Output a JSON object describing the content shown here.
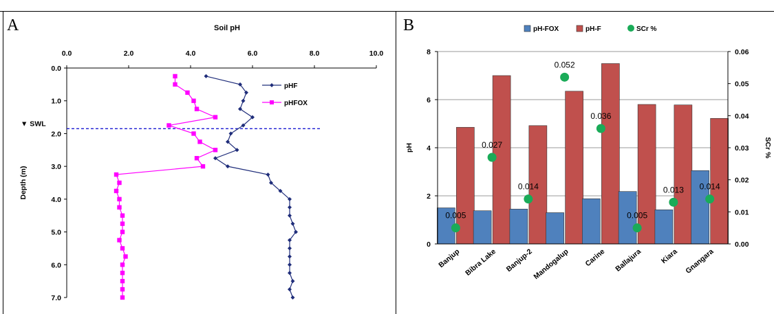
{
  "panels": {
    "a": "A",
    "b": "B"
  },
  "chart_data": [
    {
      "type": "line",
      "title": "Soil pH",
      "ylabel": "Depth (m)",
      "xlim": [
        0,
        10
      ],
      "ylim": [
        7,
        0
      ],
      "x_ticks": [
        "0.0",
        "2.0",
        "4.0",
        "6.0",
        "8.0",
        "10.0"
      ],
      "y_ticks": [
        "0.0",
        "1.0",
        "2.0",
        "3.0",
        "4.0",
        "5.0",
        "6.0",
        "7.0"
      ],
      "legend_position": "top-right",
      "series": [
        {
          "name": "pHF",
          "color": "#1f2d7a",
          "marker": "diamond",
          "points": [
            [
              4.5,
              0.25
            ],
            [
              5.6,
              0.5
            ],
            [
              5.8,
              0.75
            ],
            [
              5.7,
              1.0
            ],
            [
              5.6,
              1.25
            ],
            [
              6.0,
              1.5
            ],
            [
              5.7,
              1.75
            ],
            [
              5.3,
              2.0
            ],
            [
              5.2,
              2.25
            ],
            [
              5.5,
              2.5
            ],
            [
              4.8,
              2.75
            ],
            [
              5.2,
              3.0
            ],
            [
              6.5,
              3.25
            ],
            [
              6.6,
              3.5
            ],
            [
              6.9,
              3.75
            ],
            [
              7.2,
              4.0
            ],
            [
              7.2,
              4.25
            ],
            [
              7.2,
              4.5
            ],
            [
              7.3,
              4.75
            ],
            [
              7.4,
              5.0
            ],
            [
              7.2,
              5.25
            ],
            [
              7.2,
              5.5
            ],
            [
              7.2,
              5.75
            ],
            [
              7.2,
              6.0
            ],
            [
              7.2,
              6.25
            ],
            [
              7.3,
              6.5
            ],
            [
              7.2,
              6.75
            ],
            [
              7.3,
              7.0
            ]
          ]
        },
        {
          "name": "pHFOX",
          "color": "#ff00ff",
          "marker": "square",
          "points": [
            [
              3.5,
              0.25
            ],
            [
              3.5,
              0.5
            ],
            [
              3.9,
              0.75
            ],
            [
              4.1,
              1.0
            ],
            [
              4.2,
              1.25
            ],
            [
              4.8,
              1.5
            ],
            [
              3.3,
              1.75
            ],
            [
              4.1,
              2.0
            ],
            [
              4.3,
              2.25
            ],
            [
              4.8,
              2.5
            ],
            [
              4.2,
              2.75
            ],
            [
              4.4,
              3.0
            ],
            [
              1.6,
              3.25
            ],
            [
              1.7,
              3.5
            ],
            [
              1.6,
              3.75
            ],
            [
              1.7,
              4.0
            ],
            [
              1.7,
              4.25
            ],
            [
              1.8,
              4.5
            ],
            [
              1.8,
              4.75
            ],
            [
              1.8,
              5.0
            ],
            [
              1.7,
              5.25
            ],
            [
              1.8,
              5.5
            ],
            [
              1.9,
              5.75
            ],
            [
              1.8,
              6.0
            ],
            [
              1.8,
              6.25
            ],
            [
              1.8,
              6.5
            ],
            [
              1.8,
              6.75
            ],
            [
              1.8,
              7.0
            ]
          ]
        }
      ],
      "annotations": [
        {
          "text": "▼ SWL",
          "y": 1.85,
          "style": "dashed-line",
          "color": "#0000cc"
        }
      ]
    },
    {
      "type": "bar",
      "categories": [
        "Banjup",
        "Bibra Lake",
        "Banjup-2",
        "Mandogalup",
        "Carine",
        "Ballajura",
        "Kiara",
        "Gnangara"
      ],
      "ylabel": "pH",
      "y2label": "SCr %",
      "ylim": [
        0,
        8
      ],
      "y2lim": [
        0,
        0.06
      ],
      "y_ticks": [
        "0",
        "2",
        "4",
        "6",
        "8"
      ],
      "y2_ticks": [
        "0.00",
        "0.01",
        "0.02",
        "0.03",
        "0.04",
        "0.05",
        "0.06"
      ],
      "grid": true,
      "legend_position": "top",
      "series": [
        {
          "name": "pH-FOX",
          "color": "#4f81bd",
          "type": "bar",
          "values": [
            1.5,
            1.38,
            1.45,
            1.3,
            1.88,
            2.18,
            1.42,
            3.05
          ]
        },
        {
          "name": "pH-F",
          "color": "#c0504d",
          "type": "bar",
          "values": [
            4.85,
            7.0,
            4.92,
            6.35,
            7.5,
            5.8,
            5.78,
            5.22
          ]
        },
        {
          "name": "SCr %",
          "color": "#1aab58",
          "type": "scatter",
          "axis": "right",
          "values": [
            0.005,
            0.027,
            0.014,
            0.052,
            0.036,
            0.005,
            0.013,
            0.014
          ],
          "labels": [
            "0.005",
            "0.027",
            "0.014",
            "0.052",
            "0.036",
            "0.005",
            "0.013",
            "0.014"
          ]
        }
      ]
    }
  ]
}
